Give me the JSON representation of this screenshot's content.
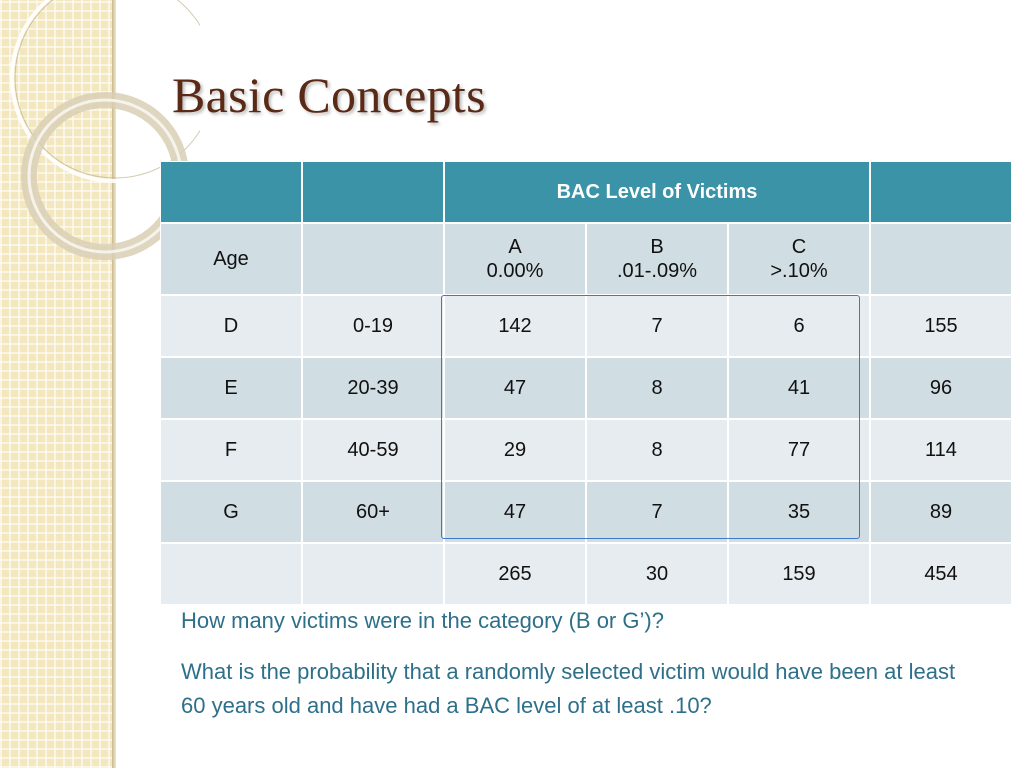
{
  "slide": {
    "title": "Basic Concepts"
  },
  "table": {
    "header": [
      "",
      "",
      "BAC Level of Victims",
      ""
    ],
    "subheader": {
      "age": "Age",
      "blank": "",
      "a_letter": "A",
      "a_range": "0.00%",
      "b_letter": "B",
      "b_range": ".01-.09%",
      "c_letter": "C",
      "c_range": ">.10%",
      "total": ""
    },
    "rows": [
      [
        "D",
        "0-19",
        "142",
        "7",
        "6",
        "155"
      ],
      [
        "E",
        "20-39",
        "47",
        "8",
        "41",
        "96"
      ],
      [
        "F",
        "40-59",
        "29",
        "8",
        "77",
        "114"
      ],
      [
        "G",
        "60+",
        "47",
        "7",
        "35",
        "89"
      ]
    ],
    "totals": [
      "",
      "",
      "265",
      "30",
      "159",
      "454"
    ]
  },
  "questions": {
    "q1": "How many victims were in the category (B or G’)?",
    "q2": "What is the probability that a randomly selected victim would have been at least 60 years old and have had a BAC level of at least .10?"
  },
  "colors": {
    "header_bg": "#3a93a6",
    "row_dark": "#d0dde2",
    "row_light": "#e6ecef",
    "title": "#5a2a17",
    "question_text": "#2e6f8a",
    "highlight_border": "#3f78c8",
    "strip": "#f3e7bf"
  }
}
